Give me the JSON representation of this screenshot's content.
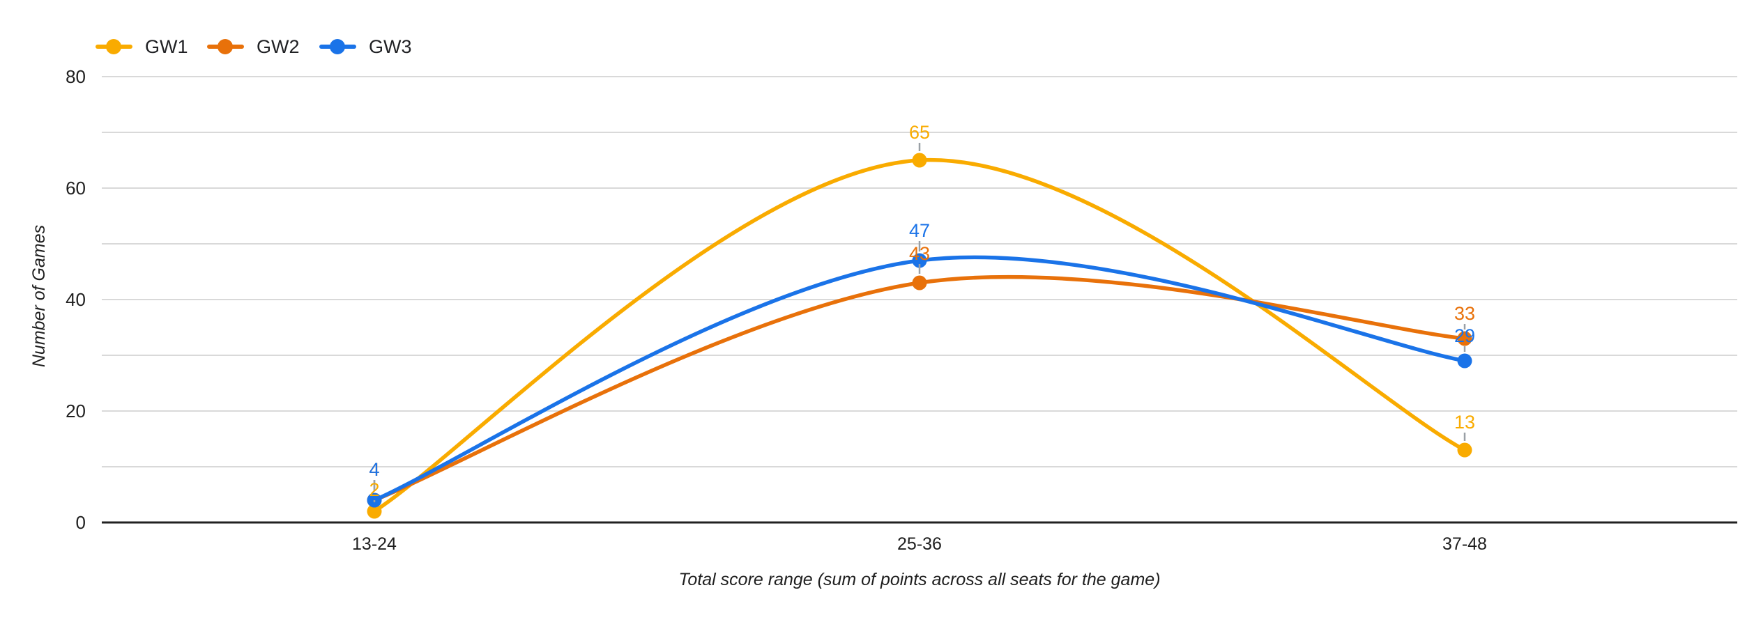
{
  "chart_data": {
    "type": "line",
    "smooth": true,
    "title": "",
    "xlabel": "Total score range (sum of points across all seats for the game)",
    "ylabel": "Number of Games",
    "categories": [
      "13-24",
      "25-36",
      "37-48"
    ],
    "series": [
      {
        "name": "GW1",
        "color": "#F9AB00",
        "values": [
          2,
          65,
          13
        ]
      },
      {
        "name": "GW2",
        "color": "#E8710A",
        "values": [
          4,
          43,
          33
        ]
      },
      {
        "name": "GW3",
        "color": "#1A73E8",
        "values": [
          4,
          47,
          29
        ]
      }
    ],
    "y_axis": {
      "ticks": [
        0,
        20,
        40,
        60,
        80
      ],
      "gridline_step": 10,
      "ylim": [
        0,
        80
      ]
    },
    "x_axis": {
      "tick_labels": [
        "13-24",
        "25-36",
        "37-48"
      ]
    },
    "data_labels": true,
    "grid": true,
    "legend_position": "top-left",
    "colors": {
      "background": "#FFFFFF",
      "gridline": "#D9D9D9",
      "axis_line": "#212121",
      "tick_text": "#1F1F1F",
      "leader_line": "#9AA0A6",
      "legend_text": "#202124"
    }
  }
}
